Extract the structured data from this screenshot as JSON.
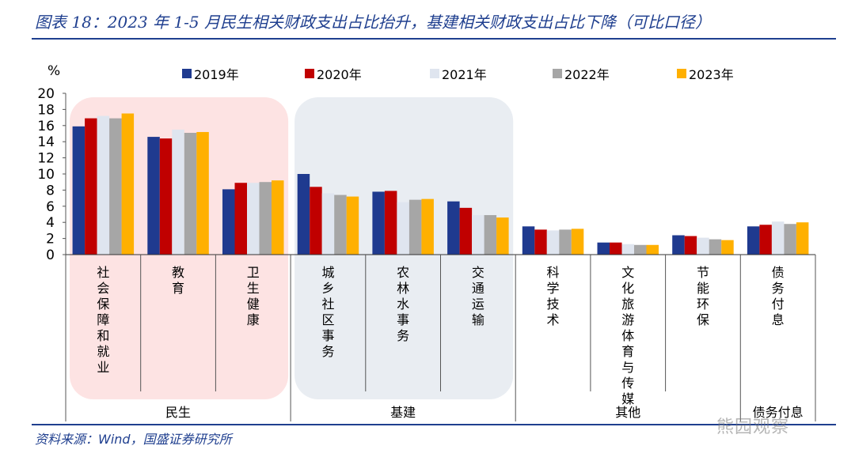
{
  "title": "图表 18：2023 年 1-5 月民生相关财政支出占比抬升，基建相关财政支出占比下降（可比口径）",
  "source": "资料来源：Wind，国盛证券研究所",
  "watermark": "熊园观察",
  "chart_data": {
    "type": "bar",
    "ylabel": "%",
    "ylim": [
      0,
      20
    ],
    "yticks": [
      "0",
      "2",
      "4",
      "6",
      "8",
      "10",
      "12",
      "14",
      "16",
      "18",
      "20"
    ],
    "legend_position": "top",
    "categories": [
      "社会保障和就业",
      "教育",
      "卫生健康",
      "城乡社区事务",
      "农林水事务",
      "交通运输",
      "科学技术",
      "文化旅游体育与传媒",
      "节能环保",
      "债务付息"
    ],
    "groups": [
      {
        "label": "民生",
        "span": [
          0,
          2
        ],
        "shade": "#fde3e3"
      },
      {
        "label": "基建",
        "span": [
          3,
          5
        ],
        "shade": "#e9edf2"
      },
      {
        "label": "其他",
        "span": [
          6,
          8
        ]
      },
      {
        "label": "债务付息",
        "span": [
          9,
          9
        ]
      }
    ],
    "series": [
      {
        "name": "2019年",
        "color": "#1f3a8f",
        "values": [
          15.9,
          14.6,
          8.1,
          10.0,
          7.8,
          6.6,
          3.5,
          1.5,
          2.4,
          3.5
        ]
      },
      {
        "name": "2020年",
        "color": "#c00000",
        "values": [
          16.9,
          14.4,
          8.9,
          8.4,
          7.9,
          5.8,
          3.1,
          1.5,
          2.3,
          3.7
        ]
      },
      {
        "name": "2021年",
        "color": "#dfe5ef",
        "values": [
          17.2,
          15.5,
          8.9,
          7.6,
          6.5,
          4.9,
          3.0,
          1.3,
          2.1,
          4.1
        ]
      },
      {
        "name": "2022年",
        "color": "#a6a6a6",
        "values": [
          16.9,
          15.1,
          9.0,
          7.4,
          6.8,
          4.9,
          3.1,
          1.2,
          1.9,
          3.8
        ]
      },
      {
        "name": "2023年",
        "color": "#ffb000",
        "values": [
          17.5,
          15.2,
          9.2,
          7.2,
          6.9,
          4.6,
          3.2,
          1.2,
          1.8,
          4.0
        ]
      }
    ]
  }
}
